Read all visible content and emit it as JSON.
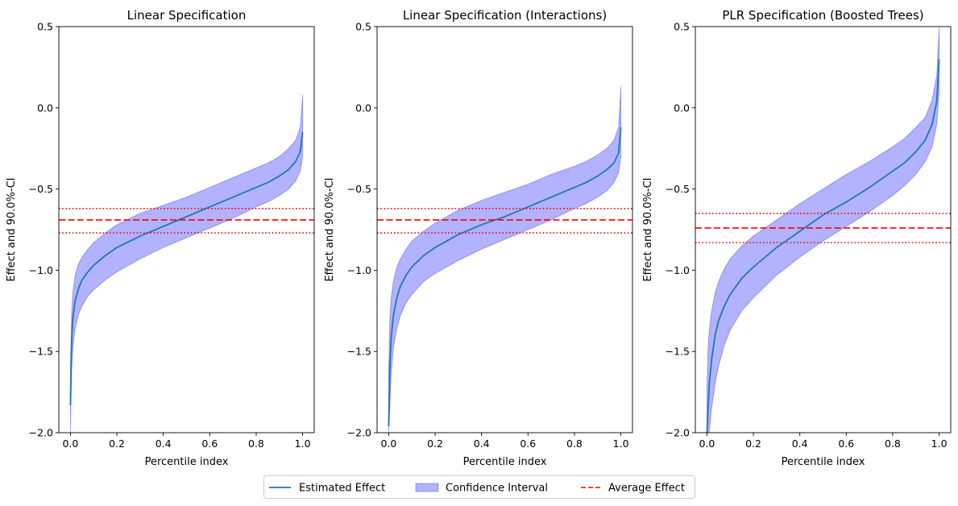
{
  "colors": {
    "line": "#1f77b4",
    "band_fill": "#0000ff",
    "band_edge": "#0000ff",
    "avg": "#ff0000",
    "axis": "#000000",
    "background": "#ffffff"
  },
  "legend": {
    "items": [
      {
        "label": "Estimated Effect",
        "kind": "line"
      },
      {
        "label": "Confidence Interval",
        "kind": "band"
      },
      {
        "label": "Average Effect",
        "kind": "dashed"
      }
    ]
  },
  "chart_data": [
    {
      "type": "area",
      "title": "Linear Specification",
      "xlabel": "Percentile index",
      "ylabel": "Effect and 90.0%-CI",
      "xlim": [
        -0.05,
        1.05
      ],
      "ylim": [
        -2.0,
        0.5
      ],
      "xticks": [
        0.0,
        0.2,
        0.4,
        0.6,
        0.8,
        1.0
      ],
      "xtick_labels": [
        "0.0",
        "0.2",
        "0.4",
        "0.6",
        "0.8",
        "1.0"
      ],
      "yticks": [
        -2.0,
        -1.5,
        -1.0,
        -0.5,
        0.0,
        0.5
      ],
      "ytick_labels": [
        "−2.0",
        "−1.5",
        "−1.0",
        "−0.5",
        "0.0",
        "0.5"
      ],
      "average_effect": -0.69,
      "average_ci": [
        -0.77,
        -0.62
      ],
      "x": [
        0.0,
        0.005,
        0.01,
        0.02,
        0.035,
        0.05,
        0.075,
        0.1,
        0.15,
        0.2,
        0.3,
        0.4,
        0.5,
        0.6,
        0.7,
        0.8,
        0.85,
        0.9,
        0.94,
        0.97,
        0.99,
        1.0
      ],
      "series": [
        {
          "name": "Estimated Effect",
          "values": [
            -1.83,
            -1.45,
            -1.3,
            -1.19,
            -1.11,
            -1.06,
            -1.01,
            -0.97,
            -0.91,
            -0.86,
            -0.79,
            -0.73,
            -0.67,
            -0.61,
            -0.55,
            -0.49,
            -0.46,
            -0.42,
            -0.38,
            -0.33,
            -0.27,
            -0.15
          ]
        },
        {
          "name": "CI lower",
          "values": [
            -2.0,
            -1.62,
            -1.48,
            -1.36,
            -1.27,
            -1.22,
            -1.16,
            -1.12,
            -1.06,
            -1.01,
            -0.93,
            -0.86,
            -0.8,
            -0.74,
            -0.68,
            -0.61,
            -0.58,
            -0.54,
            -0.5,
            -0.45,
            -0.39,
            -0.3
          ]
        },
        {
          "name": "CI upper",
          "values": [
            -1.6,
            -1.28,
            -1.14,
            -1.03,
            -0.96,
            -0.92,
            -0.87,
            -0.83,
            -0.77,
            -0.72,
            -0.65,
            -0.6,
            -0.55,
            -0.49,
            -0.43,
            -0.37,
            -0.34,
            -0.3,
            -0.25,
            -0.2,
            -0.12,
            0.08
          ]
        }
      ]
    },
    {
      "type": "area",
      "title": "Linear Specification (Interactions)",
      "xlabel": "Percentile index",
      "ylabel": "Effect and 90.0%-CI",
      "xlim": [
        -0.05,
        1.05
      ],
      "ylim": [
        -2.0,
        0.5
      ],
      "xticks": [
        0.0,
        0.2,
        0.4,
        0.6,
        0.8,
        1.0
      ],
      "xtick_labels": [
        "0.0",
        "0.2",
        "0.4",
        "0.6",
        "0.8",
        "1.0"
      ],
      "yticks": [
        -2.0,
        -1.5,
        -1.0,
        -0.5,
        0.0,
        0.5
      ],
      "ytick_labels": [
        "−2.0",
        "−1.5",
        "−1.0",
        "−0.5",
        "0.0",
        "0.5"
      ],
      "average_effect": -0.69,
      "average_ci": [
        -0.77,
        -0.62
      ],
      "x": [
        0.0,
        0.005,
        0.01,
        0.02,
        0.035,
        0.05,
        0.075,
        0.1,
        0.15,
        0.2,
        0.3,
        0.4,
        0.5,
        0.6,
        0.7,
        0.8,
        0.85,
        0.9,
        0.94,
        0.97,
        0.99,
        1.0
      ],
      "series": [
        {
          "name": "Estimated Effect",
          "values": [
            -1.96,
            -1.6,
            -1.43,
            -1.28,
            -1.17,
            -1.1,
            -1.03,
            -0.98,
            -0.91,
            -0.86,
            -0.78,
            -0.72,
            -0.67,
            -0.61,
            -0.55,
            -0.49,
            -0.46,
            -0.42,
            -0.38,
            -0.34,
            -0.28,
            -0.12
          ]
        },
        {
          "name": "CI lower",
          "values": [
            -2.0,
            -1.85,
            -1.65,
            -1.48,
            -1.36,
            -1.28,
            -1.2,
            -1.15,
            -1.07,
            -1.02,
            -0.94,
            -0.87,
            -0.81,
            -0.75,
            -0.69,
            -0.62,
            -0.59,
            -0.55,
            -0.51,
            -0.46,
            -0.4,
            -0.3
          ]
        },
        {
          "name": "CI upper",
          "values": [
            -1.62,
            -1.3,
            -1.18,
            -1.07,
            -0.98,
            -0.93,
            -0.87,
            -0.82,
            -0.76,
            -0.71,
            -0.63,
            -0.57,
            -0.52,
            -0.47,
            -0.41,
            -0.36,
            -0.33,
            -0.29,
            -0.25,
            -0.2,
            -0.12,
            0.13
          ]
        }
      ]
    },
    {
      "type": "area",
      "title": "PLR Specification (Boosted Trees)",
      "xlabel": "Percentile index",
      "ylabel": "Effect and 90.0%-CI",
      "xlim": [
        -0.05,
        1.05
      ],
      "ylim": [
        -2.0,
        0.5
      ],
      "xticks": [
        0.0,
        0.2,
        0.4,
        0.6,
        0.8,
        1.0
      ],
      "xtick_labels": [
        "0.0",
        "0.2",
        "0.4",
        "0.6",
        "0.8",
        "1.0"
      ],
      "yticks": [
        -2.0,
        -1.5,
        -1.0,
        -0.5,
        0.0,
        0.5
      ],
      "ytick_labels": [
        "−2.0",
        "−1.5",
        "−1.0",
        "−0.5",
        "0.0",
        "0.5"
      ],
      "average_effect": -0.74,
      "average_ci": [
        -0.83,
        -0.65
      ],
      "x": [
        0.0,
        0.005,
        0.01,
        0.02,
        0.035,
        0.05,
        0.075,
        0.1,
        0.15,
        0.2,
        0.3,
        0.4,
        0.5,
        0.6,
        0.7,
        0.8,
        0.85,
        0.9,
        0.94,
        0.97,
        0.99,
        1.0
      ],
      "series": [
        {
          "name": "Estimated Effect",
          "values": [
            -2.0,
            -1.85,
            -1.7,
            -1.55,
            -1.4,
            -1.31,
            -1.22,
            -1.15,
            -1.05,
            -0.98,
            -0.86,
            -0.76,
            -0.66,
            -0.58,
            -0.49,
            -0.39,
            -0.34,
            -0.27,
            -0.2,
            -0.1,
            0.04,
            0.3
          ]
        },
        {
          "name": "CI lower",
          "values": [
            -2.0,
            -2.0,
            -2.0,
            -1.85,
            -1.7,
            -1.59,
            -1.46,
            -1.37,
            -1.25,
            -1.17,
            -1.03,
            -0.92,
            -0.82,
            -0.73,
            -0.64,
            -0.54,
            -0.48,
            -0.41,
            -0.33,
            -0.24,
            -0.1,
            0.1
          ]
        },
        {
          "name": "CI upper",
          "values": [
            -1.72,
            -1.48,
            -1.37,
            -1.25,
            -1.14,
            -1.07,
            -0.99,
            -0.93,
            -0.85,
            -0.79,
            -0.69,
            -0.59,
            -0.5,
            -0.41,
            -0.33,
            -0.24,
            -0.19,
            -0.12,
            -0.06,
            0.05,
            0.2,
            0.5
          ]
        }
      ]
    }
  ]
}
